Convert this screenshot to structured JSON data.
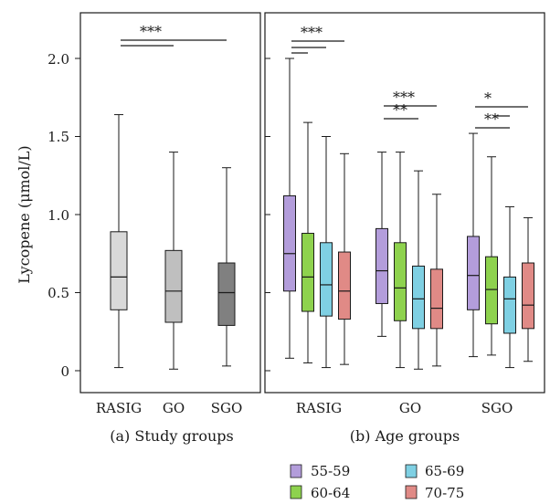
{
  "chart_data": [
    {
      "type": "box",
      "caption": "(a) Study groups",
      "ylabel": "Lycopene (μmol/L)",
      "ylim": [
        -0.1,
        2.25
      ],
      "yticks": [
        0,
        0.5,
        1.0,
        1.5,
        2.0
      ],
      "ytick_labels": [
        "0",
        "0.5",
        "1.0",
        "1.5",
        "2.0"
      ],
      "categories": [
        "RASIG",
        "GO",
        "SGO"
      ],
      "boxes": [
        {
          "group": "RASIG",
          "min": 0.02,
          "q1": 0.39,
          "median": 0.6,
          "q3": 0.89,
          "max": 1.64,
          "color": "#d9d9d9"
        },
        {
          "group": "GO",
          "min": 0.01,
          "q1": 0.31,
          "median": 0.51,
          "q3": 0.77,
          "max": 1.4,
          "color": "#bfbfbf"
        },
        {
          "group": "SGO",
          "min": 0.03,
          "q1": 0.29,
          "median": 0.5,
          "q3": 0.69,
          "max": 1.3,
          "color": "#808080"
        }
      ],
      "significance": [
        {
          "from": "RASIG",
          "to": "GO",
          "label": ""
        },
        {
          "from": "RASIG",
          "to": "SGO",
          "label": "***"
        }
      ]
    },
    {
      "type": "box",
      "caption": "(b) Age groups",
      "categories": [
        "RASIG",
        "GO",
        "SGO"
      ],
      "series_names": [
        "55-59",
        "60-64",
        "65-69",
        "70-75"
      ],
      "series_colors": [
        "#b39ddb",
        "#8ed24e",
        "#7fd0e3",
        "#e08a86"
      ],
      "groups": [
        {
          "name": "RASIG",
          "boxes": [
            {
              "min": 0.08,
              "q1": 0.51,
              "median": 0.75,
              "q3": 1.12,
              "max": 2.0
            },
            {
              "min": 0.05,
              "q1": 0.38,
              "median": 0.6,
              "q3": 0.88,
              "max": 1.59
            },
            {
              "min": 0.02,
              "q1": 0.35,
              "median": 0.55,
              "q3": 0.82,
              "max": 1.5
            },
            {
              "min": 0.04,
              "q1": 0.33,
              "median": 0.51,
              "q3": 0.76,
              "max": 1.39
            }
          ],
          "significance": [
            {
              "from": 1,
              "to": 2,
              "label": ""
            },
            {
              "from": 1,
              "to": 3,
              "label": ""
            },
            {
              "from": 1,
              "to": 4,
              "label": "***"
            }
          ]
        },
        {
          "name": "GO",
          "boxes": [
            {
              "min": 0.22,
              "q1": 0.43,
              "median": 0.64,
              "q3": 0.91,
              "max": 1.4
            },
            {
              "min": 0.02,
              "q1": 0.32,
              "median": 0.53,
              "q3": 0.82,
              "max": 1.4
            },
            {
              "min": 0.01,
              "q1": 0.27,
              "median": 0.46,
              "q3": 0.67,
              "max": 1.28
            },
            {
              "min": 0.03,
              "q1": 0.27,
              "median": 0.4,
              "q3": 0.65,
              "max": 1.13
            }
          ],
          "significance": [
            {
              "from": 1,
              "to": 3,
              "label": "**"
            },
            {
              "from": 1,
              "to": 4,
              "label": "***"
            }
          ]
        },
        {
          "name": "SGO",
          "boxes": [
            {
              "min": 0.09,
              "q1": 0.39,
              "median": 0.61,
              "q3": 0.86,
              "max": 1.52
            },
            {
              "min": 0.1,
              "q1": 0.3,
              "median": 0.52,
              "q3": 0.73,
              "max": 1.37
            },
            {
              "min": 0.02,
              "q1": 0.24,
              "median": 0.46,
              "q3": 0.6,
              "max": 1.05
            },
            {
              "min": 0.06,
              "q1": 0.27,
              "median": 0.42,
              "q3": 0.69,
              "max": 0.98
            }
          ],
          "significance": [
            {
              "from": 1,
              "to": 3,
              "label": "**"
            },
            {
              "from": 2,
              "to": 3,
              "label": ""
            },
            {
              "from": 1,
              "to": 4,
              "label": "*"
            }
          ]
        }
      ]
    }
  ],
  "legend": {
    "placement": "bottom",
    "items": [
      {
        "label": "55-59",
        "color": "#b39ddb"
      },
      {
        "label": "65-69",
        "color": "#7fd0e3"
      },
      {
        "label": "60-64",
        "color": "#8ed24e"
      },
      {
        "label": "70-75",
        "color": "#e08a86"
      }
    ]
  }
}
